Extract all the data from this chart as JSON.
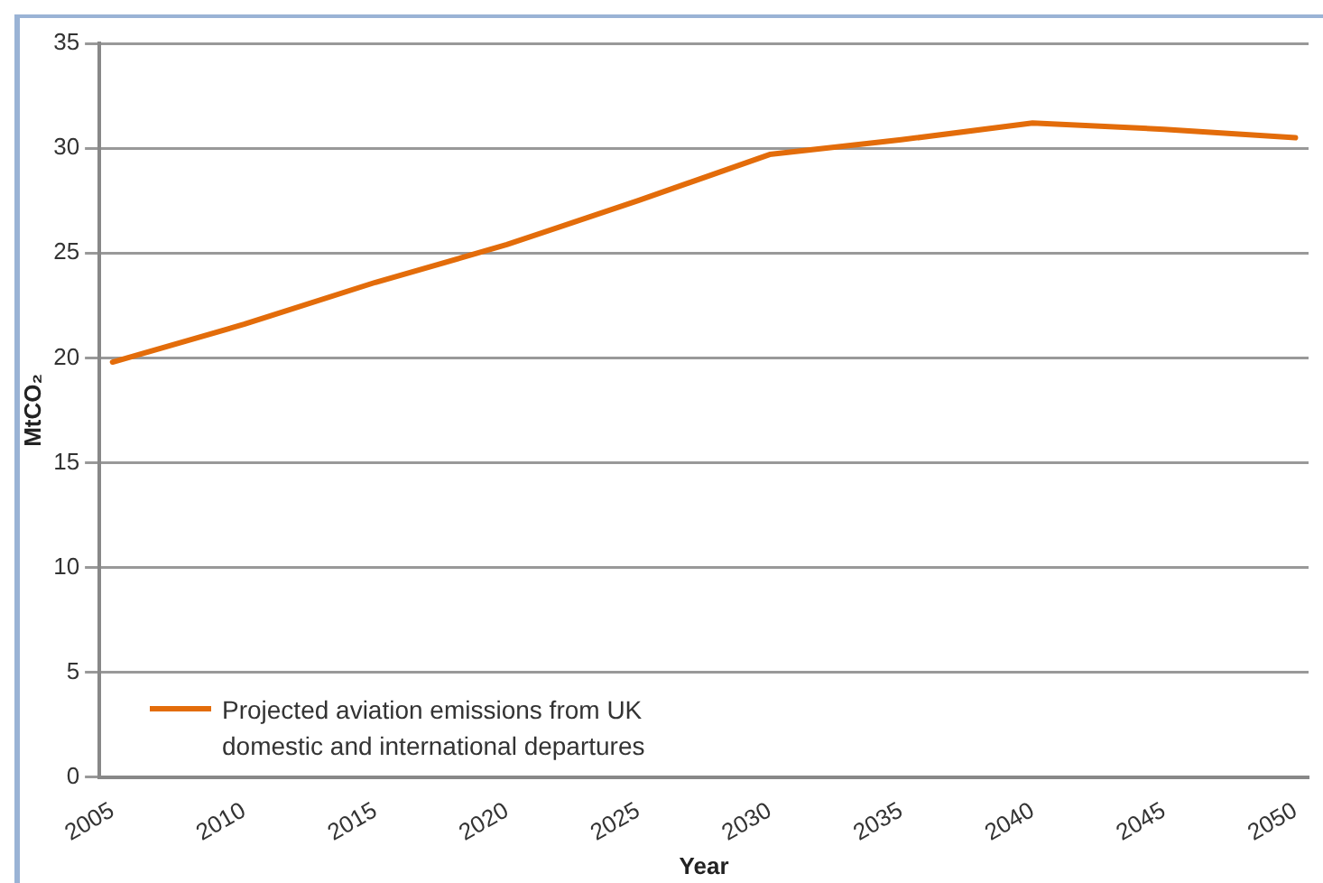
{
  "chart_data": {
    "type": "line",
    "xlabel": "Year",
    "ylabel": "MtCO₂",
    "x": [
      2005,
      2010,
      2011,
      2015,
      2020,
      2025,
      2030,
      2035,
      2040,
      2045,
      2050
    ],
    "series": [
      {
        "name": "Projected aviation emissions from UK domestic and international departures",
        "color": "#e36c0a",
        "values": [
          19.8,
          21.6,
          22.0,
          23.6,
          25.4,
          27.5,
          29.7,
          30.4,
          31.2,
          30.9,
          30.5
        ]
      }
    ],
    "xlim": [
      2004.5,
      2050.5
    ],
    "xticks": [
      2005,
      2010,
      2015,
      2020,
      2025,
      2030,
      2035,
      2040,
      2045,
      2050
    ],
    "ylim": [
      0,
      35
    ],
    "yticks": [
      0,
      5,
      10,
      15,
      20,
      25,
      30,
      35
    ],
    "grid": "y",
    "legend": "bottom left",
    "marker": "none",
    "line_style": "solid"
  }
}
